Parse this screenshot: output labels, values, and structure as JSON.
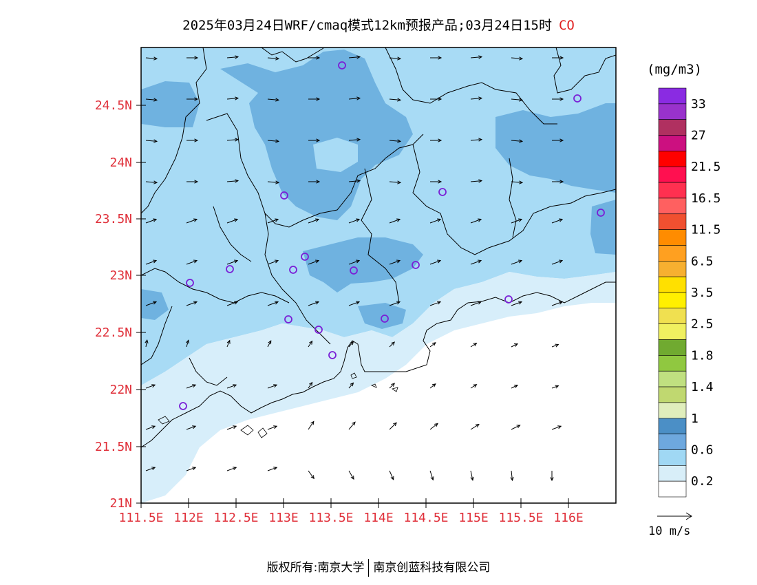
{
  "title": {
    "main": "2025年03月24日WRF/cmaq模式12km预报产品;03月24日15时",
    "species": "CO"
  },
  "map": {
    "lat_ticks": [
      "24.5N",
      "24N",
      "23.5N",
      "23N",
      "22.5N",
      "22N",
      "21.5N",
      "21N"
    ],
    "lon_ticks": [
      "111.5E",
      "112E",
      "112.5E",
      "113E",
      "113.5E",
      "114E",
      "114.5E",
      "115E",
      "115.5E",
      "116E"
    ],
    "tick_color": "#e0303a",
    "fill_colors": {
      "lowest": "#ffffff",
      "low": "#d7eefa",
      "mid": "#a8dbf5",
      "high": "#6fb2e0"
    },
    "station_marker_color": "#7a1fd6"
  },
  "legend": {
    "unit": "(mg/m3)",
    "labels": [
      "33",
      "27",
      "21.5",
      "16.5",
      "11.5",
      "6.5",
      "3.5",
      "2.5",
      "1.8",
      "1.4",
      "1",
      "0.6",
      "0.2"
    ],
    "colors": [
      "#8a2be2",
      "#9932cc",
      "#b03060",
      "#cc1080",
      "#ff0000",
      "#ff1050",
      "#ff3050",
      "#ff6060",
      "#f05030",
      "#ff8c00",
      "#ffa020",
      "#f7b030",
      "#ffe000",
      "#fff000",
      "#f0e050",
      "#f0f060",
      "#70aa30",
      "#90c840",
      "#c0e080",
      "#c0d870",
      "#e0eebc",
      "#4b8fc6",
      "#6ea8de",
      "#a0d8f4",
      "#d8eef8",
      "#ffffff"
    ]
  },
  "wind_scale": {
    "label": "10 m/s"
  },
  "footer": {
    "left": "版权所有:南京大学",
    "right": "南京创蓝科技有限公司"
  }
}
